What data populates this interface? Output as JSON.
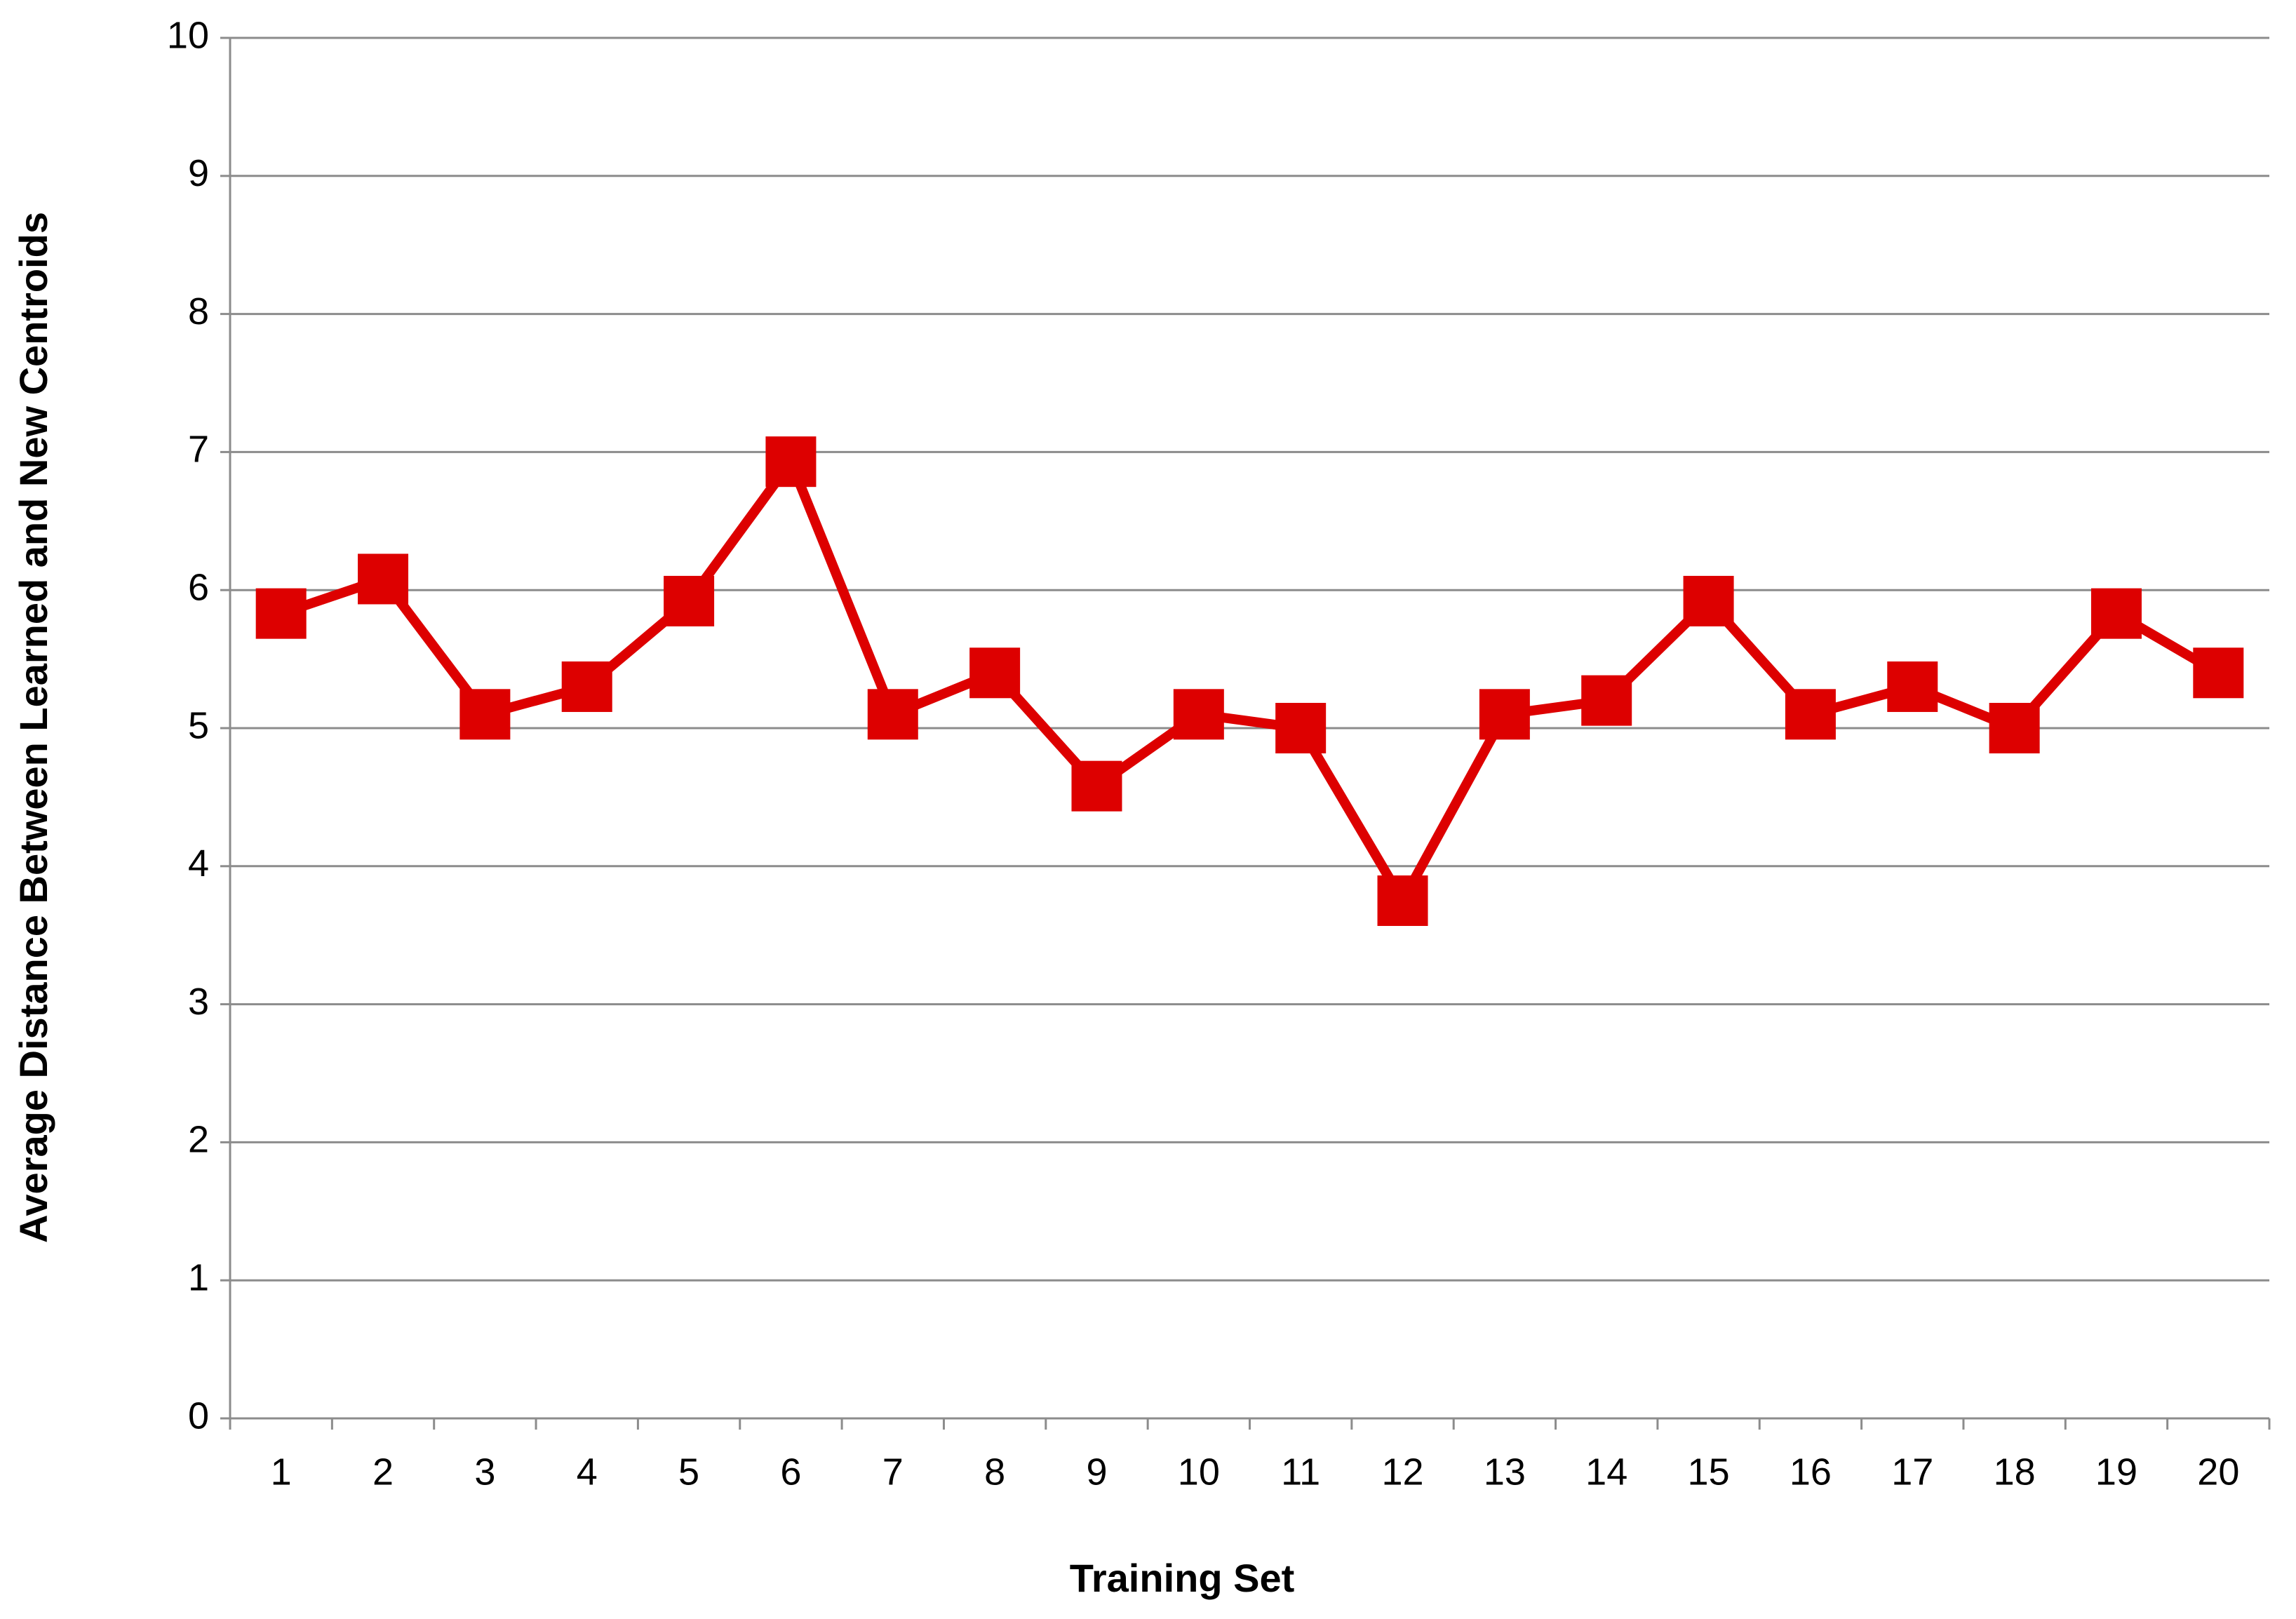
{
  "chart_data": {
    "type": "line",
    "x_label": "Training Set",
    "y_label": "Average Distance Between Learned and New Centroids",
    "categories": [
      "1",
      "2",
      "3",
      "4",
      "5",
      "6",
      "7",
      "8",
      "9",
      "10",
      "11",
      "12",
      "13",
      "14",
      "15",
      "16",
      "17",
      "18",
      "19",
      "20"
    ],
    "series": [
      {
        "color": "#dd0000",
        "values": [
          5.83,
          6.08,
          5.1,
          5.3,
          5.92,
          6.93,
          5.1,
          5.4,
          4.58,
          5.1,
          5.0,
          3.75,
          5.1,
          5.2,
          5.92,
          5.1,
          5.3,
          5.0,
          5.83,
          5.4
        ]
      }
    ],
    "ylim": [
      0,
      10
    ],
    "yticks": [
      0,
      1,
      2,
      3,
      4,
      5,
      6,
      7,
      8,
      9,
      10
    ],
    "grid": true
  }
}
